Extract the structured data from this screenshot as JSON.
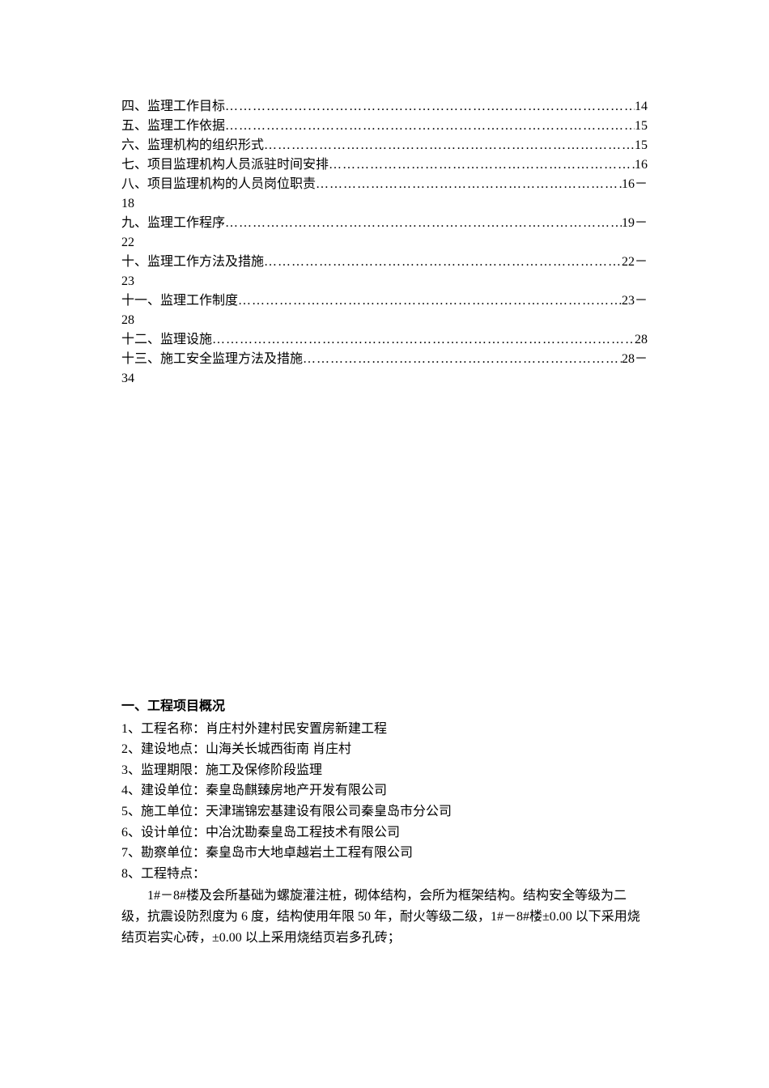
{
  "toc": {
    "items": [
      {
        "label": "四、监理工作目标",
        "page": "14",
        "continuation": null
      },
      {
        "label": "五、监理工作依据",
        "page": "15",
        "continuation": null
      },
      {
        "label": "六、监理机构的组织形式",
        "page": "15",
        "continuation": null
      },
      {
        "label": "七、项目监理机构人员派驻时间安排",
        "page": "16",
        "continuation": null
      },
      {
        "label": "八、项目监理机构的人员岗位职责",
        "page": "16－",
        "continuation": "18"
      },
      {
        "label": "九、监理工作程序",
        "page": "19－",
        "continuation": "22"
      },
      {
        "label": "十、监理工作方法及措施",
        "page": "22－",
        "continuation": "23"
      },
      {
        "label": "十一、监理工作制度",
        "page": "23－",
        "continuation": "28"
      },
      {
        "label": "十二、监理设施",
        "page": "28",
        "continuation": null
      },
      {
        "label": "十三、施工安全监理方法及措施",
        "page": "28－",
        "continuation": "34"
      }
    ],
    "dots": "…………………………………………………………………………………………"
  },
  "content": {
    "heading": "一、工程项目概况",
    "info": [
      "1、工程名称：肖庄村外建村民安置房新建工程",
      "2、建设地点：山海关长城西街南 肖庄村",
      "3、监理期限：施工及保修阶段监理",
      "4、建设单位：秦皇岛麒臻房地产开发有限公司",
      "5、施工单位：天津瑞锦宏基建设有限公司秦皇岛市分公司",
      "6、设计单位：中冶沈勘秦皇岛工程技术有限公司",
      "7、勘察单位：秦皇岛市大地卓越岩土工程有限公司",
      "8、工程特点："
    ],
    "body": "1#－8#楼及会所基础为螺旋灌注桩，砌体结构，会所为框架结构。结构安全等级为二级，抗震设防烈度为 6 度，结构使用年限 50 年，耐火等级二级，1#－8#楼±0.00 以下采用烧结页岩实心砖，±0.00 以上采用烧结页岩多孔砖；"
  }
}
